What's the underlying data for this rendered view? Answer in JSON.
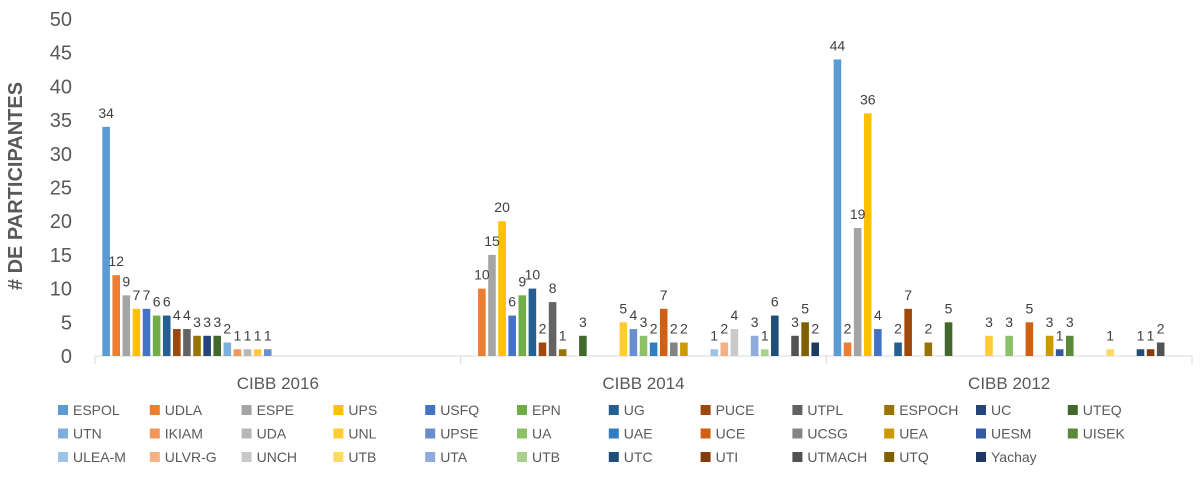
{
  "chart_data": {
    "type": "bar",
    "ylabel": "# DE PARTICIPANTES",
    "ylim": [
      0,
      50
    ],
    "yticks": [
      0,
      5,
      10,
      15,
      20,
      25,
      30,
      35,
      40,
      45,
      50
    ],
    "grid": false,
    "legend_position": "bottom",
    "categories": [
      "CIBB 2016",
      "CIBB 2014",
      "CIBB 2012"
    ],
    "series": [
      {
        "name": "ESPOL",
        "color": "#5b9bd5",
        "values": [
          34,
          null,
          44
        ]
      },
      {
        "name": "UDLA",
        "color": "#ed7d31",
        "values": [
          12,
          10,
          2
        ]
      },
      {
        "name": "ESPE",
        "color": "#a5a5a5",
        "values": [
          9,
          15,
          19
        ]
      },
      {
        "name": "UPS",
        "color": "#ffc000",
        "values": [
          7,
          20,
          36
        ]
      },
      {
        "name": "USFQ",
        "color": "#4472c4",
        "values": [
          7,
          6,
          4
        ]
      },
      {
        "name": "EPN",
        "color": "#70ad47",
        "values": [
          6,
          9,
          null
        ]
      },
      {
        "name": "UG",
        "color": "#255e91",
        "values": [
          6,
          10,
          2
        ]
      },
      {
        "name": "PUCE",
        "color": "#9e480e",
        "values": [
          4,
          2,
          7
        ]
      },
      {
        "name": "UTPL",
        "color": "#636363",
        "values": [
          4,
          8,
          null
        ]
      },
      {
        "name": "ESPOCH",
        "color": "#997300",
        "values": [
          3,
          1,
          2
        ]
      },
      {
        "name": "UC",
        "color": "#264478",
        "values": [
          3,
          null,
          null
        ]
      },
      {
        "name": "UTEQ",
        "color": "#43682b",
        "values": [
          3,
          3,
          5
        ]
      },
      {
        "name": "UTN",
        "color": "#7cafdd",
        "values": [
          2,
          null,
          null
        ]
      },
      {
        "name": "IKIAM",
        "color": "#f1975a",
        "values": [
          1,
          null,
          null
        ]
      },
      {
        "name": "UDA",
        "color": "#b7b7b7",
        "values": [
          1,
          null,
          null
        ]
      },
      {
        "name": "UNL",
        "color": "#ffcd33",
        "values": [
          1,
          5,
          3
        ]
      },
      {
        "name": "UPSE",
        "color": "#698ed0",
        "values": [
          1,
          4,
          null
        ]
      },
      {
        "name": "UA",
        "color": "#8cc168",
        "values": [
          null,
          3,
          3
        ]
      },
      {
        "name": "UAE",
        "color": "#327dc2",
        "values": [
          null,
          2,
          null
        ]
      },
      {
        "name": "UCE",
        "color": "#d26012",
        "values": [
          null,
          7,
          5
        ]
      },
      {
        "name": "UCSG",
        "color": "#848484",
        "values": [
          null,
          2,
          null
        ]
      },
      {
        "name": "UEA",
        "color": "#cc9a00",
        "values": [
          null,
          2,
          3
        ]
      },
      {
        "name": "UESM",
        "color": "#335aa1",
        "values": [
          null,
          null,
          1
        ]
      },
      {
        "name": "UISEK",
        "color": "#5a8a39",
        "values": [
          null,
          null,
          3
        ]
      },
      {
        "name": "ULEA-M",
        "color": "#9dc3e6",
        "values": [
          null,
          1,
          null
        ]
      },
      {
        "name": "ULVR-G",
        "color": "#f4b183",
        "values": [
          null,
          2,
          null
        ]
      },
      {
        "name": "UNCH",
        "color": "#c9c9c9",
        "values": [
          null,
          4,
          null
        ]
      },
      {
        "name": "UTB",
        "color": "#ffd966",
        "values": [
          null,
          null,
          1
        ]
      },
      {
        "name": "UTA",
        "color": "#8faadc",
        "values": [
          null,
          3,
          null
        ]
      },
      {
        "name": "UTB",
        "color": "#a9d18e",
        "values": [
          null,
          1,
          null
        ]
      },
      {
        "name": "UTC",
        "color": "#1f4e79",
        "values": [
          null,
          6,
          1
        ]
      },
      {
        "name": "UTI",
        "color": "#843c0c",
        "values": [
          null,
          null,
          1
        ]
      },
      {
        "name": "UTMACH",
        "color": "#525252",
        "values": [
          null,
          3,
          2
        ]
      },
      {
        "name": "UTQ",
        "color": "#7f6000",
        "values": [
          null,
          5,
          null
        ]
      },
      {
        "name": "Yachay",
        "color": "#203864",
        "values": [
          null,
          2,
          null
        ]
      }
    ]
  }
}
